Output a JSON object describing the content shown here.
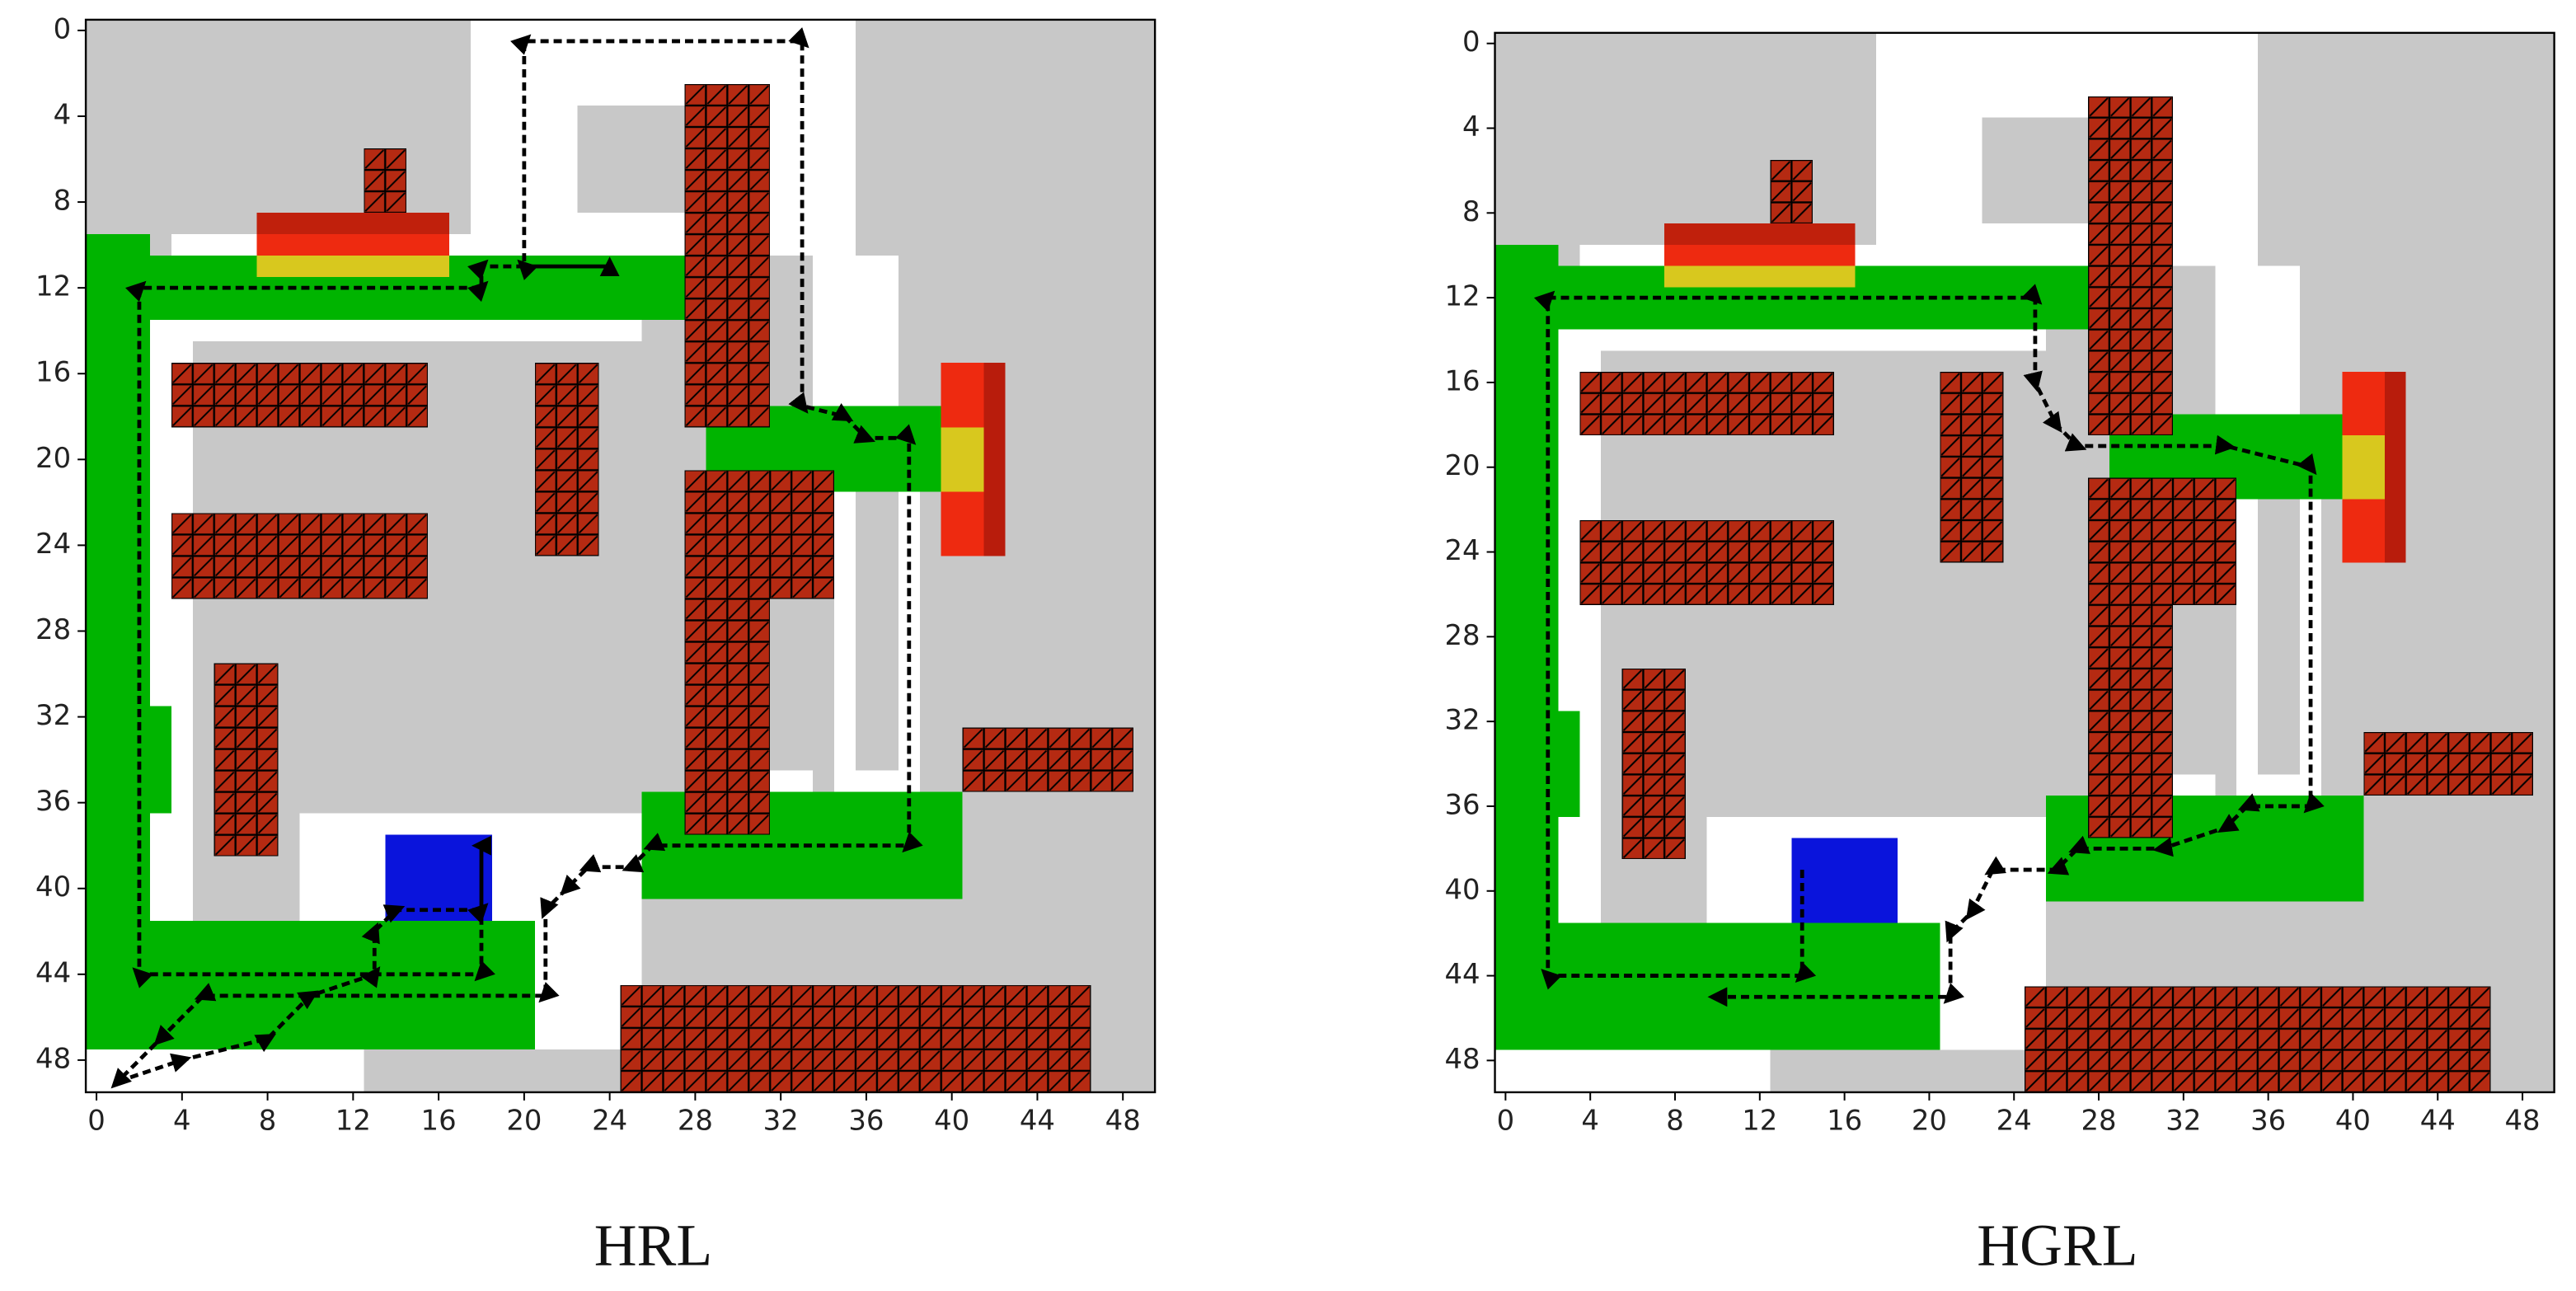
{
  "map": {
    "regions": [
      {
        "color": "#ffffff",
        "x": [
          17.5,
          35.5
        ],
        "y": [
          -0.5,
          10.5
        ]
      },
      {
        "color": "#ffffff",
        "x": [
          33.5,
          37.5
        ],
        "y": [
          10.5,
          17.5
        ]
      },
      {
        "color": "#ffffff",
        "x": [
          3.5,
          17.5
        ],
        "y": [
          9.5,
          10.5
        ]
      },
      {
        "color": "#ffffff",
        "x": [
          2.5,
          25.5
        ],
        "y": [
          13.5,
          41.5
        ]
      },
      {
        "color": "#ffffff",
        "x": [
          20.5,
          25.5
        ],
        "y": [
          41.5,
          47.5
        ]
      },
      {
        "color": "#ffffff",
        "x": [
          34.5,
          38.5
        ],
        "y": [
          17.5,
          35.5
        ]
      },
      {
        "color": "#ffffff",
        "x": [
          -0.5,
          12.5
        ],
        "y": [
          47.5,
          49.5
        ]
      },
      {
        "color": "#ffffff",
        "x": [
          25.5,
          33.5
        ],
        "y": [
          34.5,
          35.5
        ]
      },
      {
        "color": "#c8c8c8",
        "x": [
          22.5,
          27.5
        ],
        "y": [
          3.5,
          8.5
        ]
      },
      {
        "color": "#c8c8c8",
        "x": [
          4.5,
          27.5
        ],
        "y": [
          14.5,
          36.5
        ]
      },
      {
        "color": "#c8c8c8",
        "x": [
          4.5,
          9.5
        ],
        "y": [
          36.5,
          41.5
        ]
      },
      {
        "color": "#c8c8c8",
        "x": [
          35.5,
          37.5
        ],
        "y": [
          21.5,
          34.5
        ]
      },
      {
        "color": "#00b400",
        "x": [
          -0.5,
          2.5
        ],
        "y": [
          9.5,
          47.5
        ]
      },
      {
        "color": "#00b400",
        "x": [
          -0.5,
          27.5
        ],
        "y": [
          10.5,
          13.5
        ]
      },
      {
        "color": "#00b400",
        "x": [
          2.5,
          3.5
        ],
        "y": [
          31.5,
          36.5
        ]
      },
      {
        "color": "#00b400",
        "x": [
          -0.5,
          20.5
        ],
        "y": [
          41.5,
          47.5
        ]
      },
      {
        "color": "#00b400",
        "x": [
          28.5,
          39.5
        ],
        "y": [
          17.5,
          21.5
        ]
      },
      {
        "color": "#00b400",
        "x": [
          25.5,
          40.5
        ],
        "y": [
          35.5,
          40.5
        ]
      },
      {
        "color": "#0a14dc",
        "x": [
          13.5,
          18.5
        ],
        "y": [
          37.5,
          41.5
        ]
      },
      {
        "color": "#c0200c",
        "x": [
          7.5,
          16.5
        ],
        "y": [
          8.5,
          9.5
        ]
      },
      {
        "color": "#ee2a10",
        "x": [
          7.5,
          16.5
        ],
        "y": [
          9.5,
          10.5
        ]
      },
      {
        "color": "#d8c81e",
        "x": [
          7.5,
          16.5
        ],
        "y": [
          10.5,
          11.5
        ]
      },
      {
        "color": "#ee2a10",
        "x": [
          39.5,
          42.5
        ],
        "y": [
          15.5,
          24.5
        ]
      },
      {
        "color": "#b81c0c",
        "x": [
          41.5,
          42.5
        ],
        "y": [
          15.5,
          24.5
        ]
      },
      {
        "color": "#d8c81e",
        "x": [
          39.5,
          41.5
        ],
        "y": [
          18.5,
          21.5
        ]
      }
    ],
    "obstacle_color": "#b52a12",
    "obstacles": [
      {
        "x": [
          12.5,
          14.5
        ],
        "y": [
          5.5,
          8.5
        ]
      },
      {
        "x": [
          3.5,
          15.5
        ],
        "y": [
          15.5,
          18.5
        ]
      },
      {
        "x": [
          3.5,
          15.5
        ],
        "y": [
          22.5,
          26.5
        ]
      },
      {
        "x": [
          20.5,
          23.5
        ],
        "y": [
          15.5,
          24.5
        ]
      },
      {
        "x": [
          27.5,
          31.5
        ],
        "y": [
          2.5,
          18.5
        ]
      },
      {
        "x": [
          27.5,
          34.5
        ],
        "y": [
          20.5,
          26.5
        ]
      },
      {
        "x": [
          27.5,
          31.5
        ],
        "y": [
          26.5,
          37.5
        ]
      },
      {
        "x": [
          5.5,
          8.5
        ],
        "y": [
          29.5,
          38.5
        ]
      },
      {
        "x": [
          40.5,
          48.5
        ],
        "y": [
          32.5,
          35.5
        ]
      },
      {
        "x": [
          24.5,
          46.5
        ],
        "y": [
          44.5,
          49.5
        ]
      }
    ]
  },
  "chart_data": [
    {
      "type": "grid",
      "title": "HRL",
      "background": "#c8c8c8",
      "xlim": [
        -0.5,
        49.5
      ],
      "ylim": [
        49.5,
        -0.5
      ],
      "xticks": [
        0,
        4,
        8,
        12,
        16,
        20,
        24,
        28,
        32,
        36,
        40,
        44,
        48
      ],
      "yticks": [
        0,
        4,
        8,
        12,
        16,
        20,
        24,
        28,
        32,
        36,
        40,
        44,
        48
      ],
      "path_color": "#000000",
      "x": [
        1,
        4,
        8,
        10,
        13,
        13,
        14,
        18,
        18,
        18,
        2,
        2,
        18,
        18,
        24,
        20,
        20,
        33,
        33,
        35,
        36,
        38,
        38,
        26,
        25,
        23,
        22,
        21,
        21,
        5,
        3,
        1
      ],
      "y": [
        49,
        48,
        47,
        45,
        44,
        42,
        41,
        41,
        38,
        44,
        44,
        12,
        12,
        11,
        11,
        11,
        0.5,
        0.5,
        17.5,
        18,
        19,
        19,
        38,
        38,
        39,
        39,
        40,
        41,
        45,
        45,
        47,
        49
      ]
    },
    {
      "type": "grid",
      "title": "HGRL",
      "background": "#c8c8c8",
      "xlim": [
        -0.5,
        49.5
      ],
      "ylim": [
        49.5,
        -0.5
      ],
      "xticks": [
        0,
        4,
        8,
        12,
        16,
        20,
        24,
        28,
        32,
        36,
        40,
        44,
        48
      ],
      "yticks": [
        0,
        4,
        8,
        12,
        16,
        20,
        24,
        28,
        32,
        36,
        40,
        44,
        48
      ],
      "path_color": "#000000",
      "x": [
        14,
        14,
        2,
        2,
        25,
        25,
        26,
        27,
        34,
        38,
        38,
        35,
        34,
        31,
        27,
        26,
        23,
        22,
        21,
        21,
        10
      ],
      "y": [
        39,
        44,
        44,
        12,
        12,
        16,
        18,
        19,
        19,
        20,
        36,
        36,
        37,
        38,
        38,
        39,
        39,
        41,
        42,
        45,
        45
      ]
    }
  ]
}
